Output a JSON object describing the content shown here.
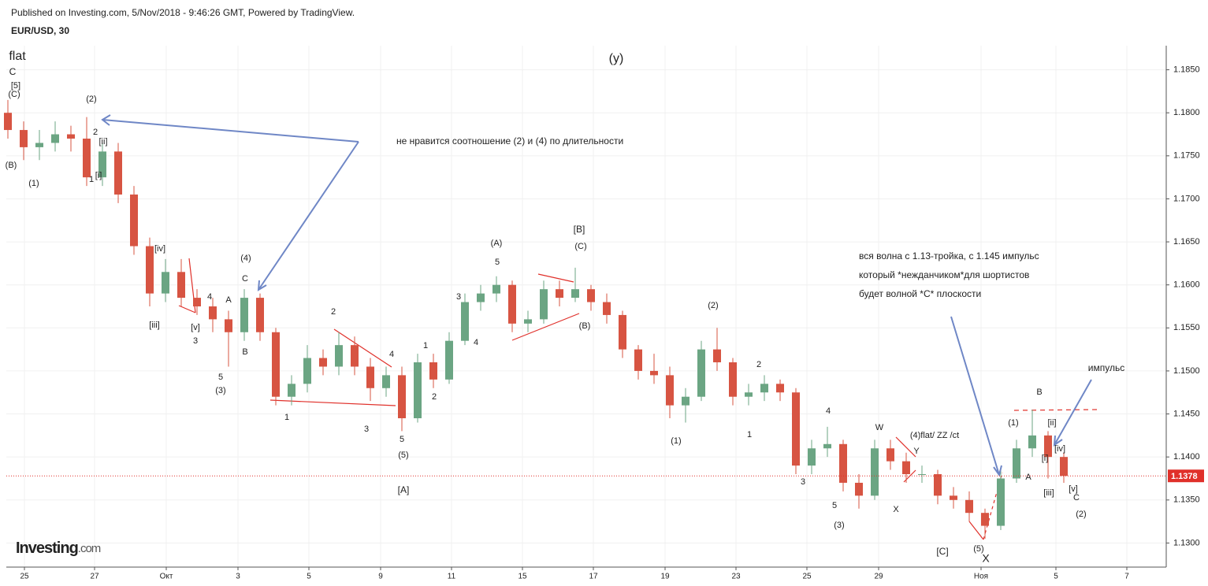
{
  "header": {
    "published": "Published on Investing.com, 5/Nov/2018 - 9:46:26 GMT, Powered by TradingView.",
    "symbol": "EUR/USD, 30",
    "logo": "Investing",
    "logo_suffix": ".com"
  },
  "chart_data": {
    "type": "candlestick",
    "up_color": "#6ba583",
    "down_color": "#d75442",
    "grid": true,
    "ylim": [
      1.1272,
      1.1878
    ],
    "yticks": [
      {
        "value": 1.13,
        "label": "1.1300"
      },
      {
        "value": 1.135,
        "label": "1.1350"
      },
      {
        "value": 1.14,
        "label": "1.1400"
      },
      {
        "value": 1.145,
        "label": "1.1450"
      },
      {
        "value": 1.15,
        "label": "1.1500"
      },
      {
        "value": 1.155,
        "label": "1.1550"
      },
      {
        "value": 1.16,
        "label": "1.1600"
      },
      {
        "value": 1.165,
        "label": "1.1650"
      },
      {
        "value": 1.17,
        "label": "1.1700"
      },
      {
        "value": 1.175,
        "label": "1.1750"
      },
      {
        "value": 1.18,
        "label": "1.1800"
      },
      {
        "value": 1.185,
        "label": "1.1850"
      }
    ],
    "xticks": [
      "25",
      "27",
      "Окт",
      "3",
      "5",
      "9",
      "11",
      "15",
      "17",
      "19",
      "23",
      "25",
      "29",
      "Ноя",
      "5",
      "7"
    ],
    "last_price": 1.1378,
    "last_price_color": "#e0302a",
    "ohlc": [
      [
        1.18,
        1.1815,
        1.177,
        1.178
      ],
      [
        1.178,
        1.179,
        1.1745,
        1.176
      ],
      [
        1.176,
        1.178,
        1.1745,
        1.1765
      ],
      [
        1.1765,
        1.179,
        1.1755,
        1.1775
      ],
      [
        1.1775,
        1.1785,
        1.1755,
        1.177
      ],
      [
        1.177,
        1.1795,
        1.1715,
        1.1725
      ],
      [
        1.1725,
        1.1765,
        1.1715,
        1.1755
      ],
      [
        1.1755,
        1.1765,
        1.1695,
        1.1705
      ],
      [
        1.1705,
        1.1715,
        1.1635,
        1.1645
      ],
      [
        1.1645,
        1.1655,
        1.1575,
        1.159
      ],
      [
        1.159,
        1.163,
        1.158,
        1.1615
      ],
      [
        1.1615,
        1.163,
        1.1575,
        1.1585
      ],
      [
        1.1585,
        1.1595,
        1.1565,
        1.1575
      ],
      [
        1.1575,
        1.1585,
        1.1545,
        1.156
      ],
      [
        1.156,
        1.157,
        1.1505,
        1.1545
      ],
      [
        1.1545,
        1.1595,
        1.1535,
        1.1585
      ],
      [
        1.1585,
        1.159,
        1.1535,
        1.1545
      ],
      [
        1.1545,
        1.155,
        1.146,
        1.147
      ],
      [
        1.147,
        1.1495,
        1.146,
        1.1485
      ],
      [
        1.1485,
        1.153,
        1.1475,
        1.1515
      ],
      [
        1.1515,
        1.1525,
        1.1495,
        1.1505
      ],
      [
        1.1505,
        1.1545,
        1.1495,
        1.153
      ],
      [
        1.153,
        1.154,
        1.1495,
        1.1505
      ],
      [
        1.1505,
        1.1515,
        1.1465,
        1.148
      ],
      [
        1.148,
        1.1505,
        1.147,
        1.1495
      ],
      [
        1.1495,
        1.1505,
        1.143,
        1.1445
      ],
      [
        1.1445,
        1.152,
        1.144,
        1.151
      ],
      [
        1.151,
        1.152,
        1.148,
        1.149
      ],
      [
        1.149,
        1.1545,
        1.1485,
        1.1535
      ],
      [
        1.1535,
        1.159,
        1.153,
        1.158
      ],
      [
        1.158,
        1.16,
        1.157,
        1.159
      ],
      [
        1.159,
        1.161,
        1.158,
        1.16
      ],
      [
        1.16,
        1.1605,
        1.1545,
        1.1555
      ],
      [
        1.1555,
        1.157,
        1.1545,
        1.156
      ],
      [
        1.156,
        1.1605,
        1.1555,
        1.1595
      ],
      [
        1.1595,
        1.1605,
        1.1575,
        1.1585
      ],
      [
        1.1585,
        1.162,
        1.158,
        1.1595
      ],
      [
        1.1595,
        1.16,
        1.157,
        1.158
      ],
      [
        1.158,
        1.159,
        1.1555,
        1.1565
      ],
      [
        1.1565,
        1.157,
        1.1515,
        1.1525
      ],
      [
        1.1525,
        1.153,
        1.149,
        1.15
      ],
      [
        1.15,
        1.152,
        1.1485,
        1.1495
      ],
      [
        1.1495,
        1.1505,
        1.1445,
        1.146
      ],
      [
        1.146,
        1.148,
        1.144,
        1.147
      ],
      [
        1.147,
        1.1535,
        1.1465,
        1.1525
      ],
      [
        1.1525,
        1.155,
        1.15,
        1.151
      ],
      [
        1.151,
        1.1515,
        1.146,
        1.147
      ],
      [
        1.147,
        1.1485,
        1.146,
        1.1475
      ],
      [
        1.1475,
        1.1495,
        1.1465,
        1.1485
      ],
      [
        1.1485,
        1.149,
        1.1465,
        1.1475
      ],
      [
        1.1475,
        1.148,
        1.138,
        1.139
      ],
      [
        1.139,
        1.142,
        1.138,
        1.141
      ],
      [
        1.141,
        1.1435,
        1.14,
        1.1415
      ],
      [
        1.1415,
        1.142,
        1.136,
        1.137
      ],
      [
        1.137,
        1.138,
        1.134,
        1.1355
      ],
      [
        1.1355,
        1.142,
        1.135,
        1.141
      ],
      [
        1.141,
        1.142,
        1.1385,
        1.1395
      ],
      [
        1.1395,
        1.1405,
        1.137,
        1.138
      ],
      [
        1.138,
        1.139,
        1.137,
        1.138
      ],
      [
        1.138,
        1.1385,
        1.1345,
        1.1355
      ],
      [
        1.1355,
        1.1365,
        1.134,
        1.135
      ],
      [
        1.135,
        1.136,
        1.1325,
        1.1335
      ],
      [
        1.1335,
        1.134,
        1.1305,
        1.132
      ],
      [
        1.132,
        1.1385,
        1.1315,
        1.1375
      ],
      [
        1.1375,
        1.142,
        1.137,
        1.141
      ],
      [
        1.141,
        1.1455,
        1.14,
        1.1425
      ],
      [
        1.1425,
        1.143,
        1.1375,
        1.14
      ],
      [
        1.14,
        1.1405,
        1.137,
        1.1378
      ]
    ],
    "annotations": [
      "flat",
      "C",
      "[5]",
      "(C)",
      "(B)",
      "(1)",
      "(2)",
      "2",
      "[ii]",
      "[i]",
      "1",
      "[iv]",
      "[iii]",
      "[v]",
      "3",
      "4",
      "A",
      "(4)",
      "C",
      "B",
      "5",
      "(3)",
      "2",
      "4",
      "1",
      "3",
      "5",
      "(5)",
      "[A]",
      "1",
      "2",
      "3",
      "4",
      "(A)",
      "5",
      "[B]",
      "(C)",
      "(B)",
      "(y)",
      "(2)",
      "(1)",
      "2",
      "1",
      "4",
      "3",
      "5",
      "(3)",
      "W",
      "(4)flat/ ZZ /ct",
      "Y",
      "X",
      "[C]",
      "(5)",
      "X",
      "(1)",
      "B",
      "[ii]",
      "[iv]",
      "[i]",
      "A",
      "[iii]",
      "[v]",
      "C",
      "(2)",
      "импульс"
    ],
    "notes": [
      "не нравится соотношение  (2) и (4) по длительности",
      "вся волна с 1.13-тройка, с 1.145 импульс",
      "который *нежданчиком*для шортистов",
      "будет волной *С* плоскости"
    ]
  }
}
